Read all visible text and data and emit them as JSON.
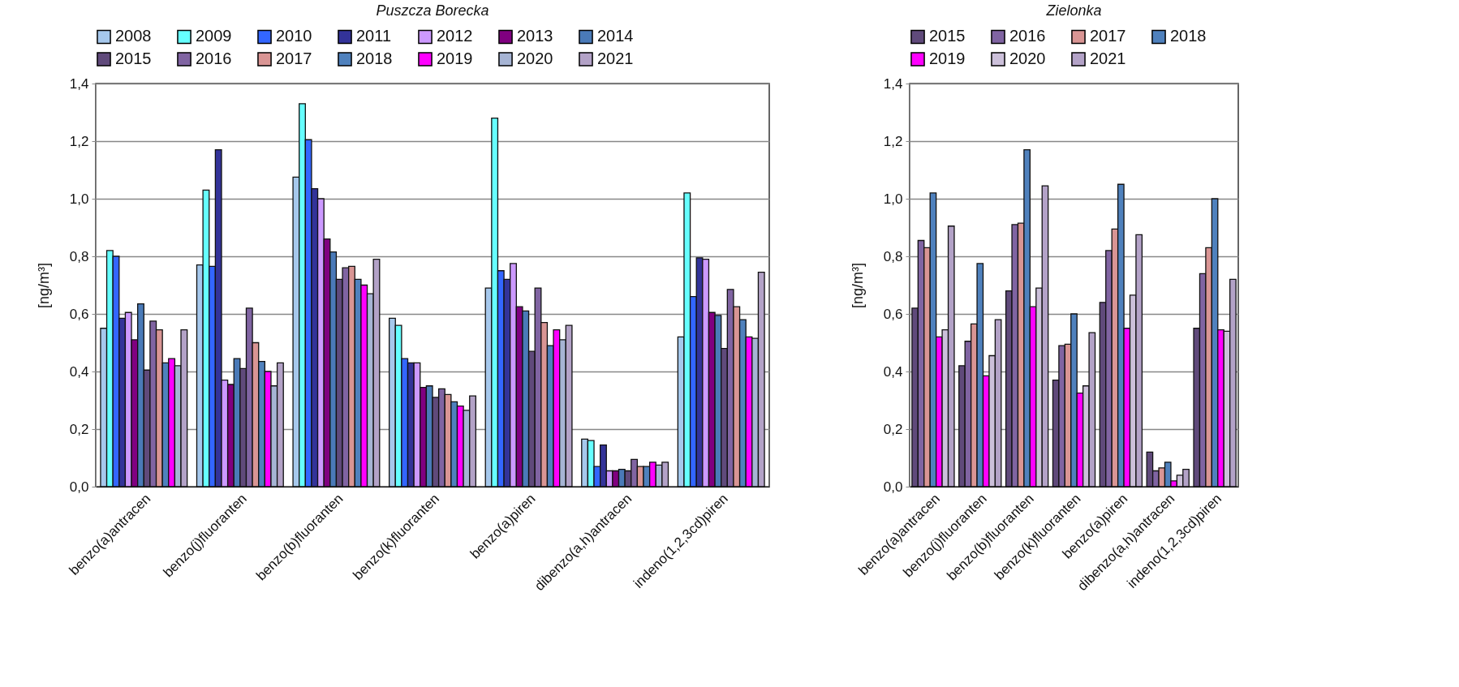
{
  "chart_data": [
    {
      "type": "bar",
      "title": "Puszcza Borecka",
      "ylabel": "[ng/m³]",
      "categories": [
        "benzo(a)antracen",
        "benzo(j)fluoranten",
        "benzo(b)fluoranten",
        "benzo(k)fluoranten",
        "benzo(a)piren",
        "dibenzo(a,h)antracen",
        "indeno(1,2,3cd)piren"
      ],
      "ylim": [
        0,
        1.4
      ],
      "yticks": [
        {
          "value": 0,
          "label": "0,0"
        },
        {
          "value": 0.2,
          "label": "0,2"
        },
        {
          "value": 0.4,
          "label": "0,4"
        },
        {
          "value": 0.6,
          "label": "0,6"
        },
        {
          "value": 0.8,
          "label": "0,8"
        },
        {
          "value": 1,
          "label": "1,0"
        },
        {
          "value": 1.2,
          "label": "1,2"
        },
        {
          "value": 1.4,
          "label": "1,4"
        }
      ],
      "grid": "y",
      "legend": "top",
      "series": [
        {
          "name": "2008",
          "color": "#a6c8ec",
          "values": [
            0.55,
            0.77,
            1.075,
            0.585,
            0.69,
            0.165,
            0.52
          ]
        },
        {
          "name": "2009",
          "color": "#66ffff",
          "values": [
            0.82,
            1.03,
            1.33,
            0.56,
            1.28,
            0.16,
            1.02
          ]
        },
        {
          "name": "2010",
          "color": "#3366ff",
          "values": [
            0.8,
            0.765,
            1.205,
            0.445,
            0.75,
            0.07,
            0.66
          ]
        },
        {
          "name": "2011",
          "color": "#333399",
          "values": [
            0.585,
            1.17,
            1.035,
            0.43,
            0.72,
            0.145,
            0.795
          ]
        },
        {
          "name": "2012",
          "color": "#cc99ff",
          "values": [
            0.605,
            0.37,
            1.0,
            0.43,
            0.775,
            0.055,
            0.79
          ]
        },
        {
          "name": "2013",
          "color": "#800080",
          "values": [
            0.51,
            0.355,
            0.86,
            0.345,
            0.625,
            0.055,
            0.605
          ]
        },
        {
          "name": "2014",
          "color": "#4a7ab8",
          "values": [
            0.635,
            0.445,
            0.815,
            0.35,
            0.61,
            0.06,
            0.595
          ]
        },
        {
          "name": "2015",
          "color": "#604a7b",
          "values": [
            0.405,
            0.41,
            0.72,
            0.31,
            0.47,
            0.055,
            0.48
          ]
        },
        {
          "name": "2016",
          "color": "#8064a2",
          "values": [
            0.575,
            0.62,
            0.76,
            0.34,
            0.69,
            0.095,
            0.685
          ]
        },
        {
          "name": "2017",
          "color": "#d99594",
          "values": [
            0.545,
            0.5,
            0.765,
            0.32,
            0.57,
            0.07,
            0.625
          ]
        },
        {
          "name": "2018",
          "color": "#4f81bd",
          "values": [
            0.43,
            0.435,
            0.72,
            0.295,
            0.49,
            0.07,
            0.58
          ]
        },
        {
          "name": "2019",
          "color": "#ff00ff",
          "values": [
            0.445,
            0.4,
            0.7,
            0.28,
            0.545,
            0.085,
            0.52
          ]
        },
        {
          "name": "2020",
          "color": "#a6b4d4",
          "values": [
            0.42,
            0.35,
            0.67,
            0.265,
            0.51,
            0.075,
            0.515
          ]
        },
        {
          "name": "2021",
          "color": "#b3a2c7",
          "values": [
            0.545,
            0.43,
            0.79,
            0.315,
            0.56,
            0.085,
            0.745
          ]
        }
      ]
    },
    {
      "type": "bar",
      "title": "Zielonka",
      "ylabel": "[ng/m³]",
      "categories": [
        "benzo(a)antracen",
        "benzo(j)fluoranten",
        "benzo(b)fluoranten",
        "benzo(k)fluoranten",
        "benzo(a)piren",
        "dibenzo(a,h)antracen",
        "indeno(1,2,3cd)piren"
      ],
      "ylim": [
        0,
        1.4
      ],
      "yticks": [
        {
          "value": 0,
          "label": "0,0"
        },
        {
          "value": 0.2,
          "label": "0,2"
        },
        {
          "value": 0.4,
          "label": "0,4"
        },
        {
          "value": 0.6,
          "label": "0,6"
        },
        {
          "value": 0.8,
          "label": "0,8"
        },
        {
          "value": 1,
          "label": "1,0"
        },
        {
          "value": 1.2,
          "label": "1,2"
        },
        {
          "value": 1.4,
          "label": "1,4"
        }
      ],
      "grid": "y",
      "legend": "top",
      "series": [
        {
          "name": "2015",
          "color": "#604a7b",
          "values": [
            0.62,
            0.42,
            0.68,
            0.37,
            0.64,
            0.12,
            0.55
          ]
        },
        {
          "name": "2016",
          "color": "#8064a2",
          "values": [
            0.855,
            0.505,
            0.91,
            0.49,
            0.82,
            0.055,
            0.74
          ]
        },
        {
          "name": "2017",
          "color": "#d99594",
          "values": [
            0.83,
            0.565,
            0.915,
            0.495,
            0.895,
            0.065,
            0.83
          ]
        },
        {
          "name": "2018",
          "color": "#4f81bd",
          "values": [
            1.02,
            0.775,
            1.17,
            0.6,
            1.05,
            0.085,
            1.0
          ]
        },
        {
          "name": "2019",
          "color": "#ff00ff",
          "values": [
            0.52,
            0.385,
            0.625,
            0.325,
            0.55,
            0.02,
            0.545
          ]
        },
        {
          "name": "2020",
          "color": "#ccc0da",
          "values": [
            0.545,
            0.455,
            0.69,
            0.35,
            0.665,
            0.04,
            0.54
          ]
        },
        {
          "name": "2021",
          "color": "#b3a2c7",
          "values": [
            0.905,
            0.58,
            1.045,
            0.535,
            0.875,
            0.06,
            0.72
          ]
        }
      ]
    }
  ]
}
